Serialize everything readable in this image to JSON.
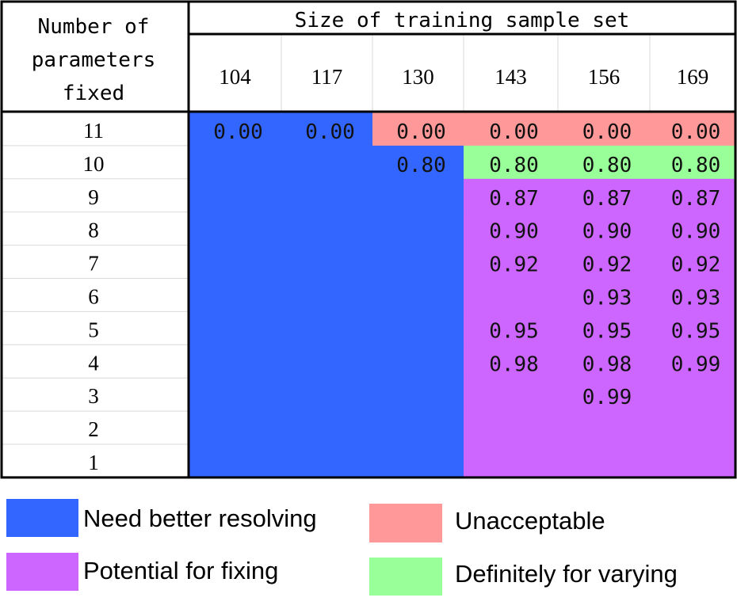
{
  "chart_data": {
    "type": "table",
    "row_header": "Number of parameters fixed",
    "column_header": "Size of training sample set",
    "columns": [
      "104",
      "117",
      "130",
      "143",
      "156",
      "169"
    ],
    "rows": [
      "11",
      "10",
      "9",
      "8",
      "7",
      "6",
      "5",
      "4",
      "3",
      "2",
      "1"
    ],
    "cells": [
      [
        "0.00",
        "0.00",
        "0.00",
        "0.00",
        "0.00",
        "0.00"
      ],
      [
        "",
        "",
        "0.80",
        "0.80",
        "0.80",
        "0.80"
      ],
      [
        "",
        "",
        "",
        "0.87",
        "0.87",
        "0.87"
      ],
      [
        "",
        "",
        "",
        "0.90",
        "0.90",
        "0.90"
      ],
      [
        "",
        "",
        "",
        "0.92",
        "0.92",
        "0.92"
      ],
      [
        "",
        "",
        "",
        "",
        "0.93",
        "0.93"
      ],
      [
        "",
        "",
        "",
        "0.95",
        "0.95",
        "0.95"
      ],
      [
        "",
        "",
        "",
        "0.98",
        "0.98",
        "0.99"
      ],
      [
        "",
        "",
        "",
        "",
        "0.99",
        ""
      ],
      [
        "",
        "",
        "",
        "",
        "",
        ""
      ],
      [
        "",
        "",
        "",
        "",
        "",
        ""
      ]
    ],
    "categories_grid": [
      [
        "B",
        "B",
        "R",
        "R",
        "R",
        "R"
      ],
      [
        "B",
        "B",
        "B",
        "G",
        "G",
        "G"
      ],
      [
        "B",
        "B",
        "B",
        "P",
        "P",
        "P"
      ],
      [
        "B",
        "B",
        "B",
        "P",
        "P",
        "P"
      ],
      [
        "B",
        "B",
        "B",
        "P",
        "P",
        "P"
      ],
      [
        "B",
        "B",
        "B",
        "P",
        "P",
        "P"
      ],
      [
        "B",
        "B",
        "B",
        "P",
        "P",
        "P"
      ],
      [
        "B",
        "B",
        "B",
        "P",
        "P",
        "P"
      ],
      [
        "B",
        "B",
        "B",
        "P",
        "P",
        "P"
      ],
      [
        "B",
        "B",
        "B",
        "P",
        "P",
        "P"
      ],
      [
        "B",
        "B",
        "B",
        "P",
        "P",
        "P"
      ]
    ],
    "legend": [
      {
        "key": "B",
        "label": "Need better resolving",
        "color": "#3366ff"
      },
      {
        "key": "R",
        "label": "Unacceptable",
        "color": "#ff9999"
      },
      {
        "key": "P",
        "label": "Potential for fixing",
        "color": "#cc66ff"
      },
      {
        "key": "G",
        "label": "Definitely for varying",
        "color": "#99ff99"
      }
    ],
    "legend_placement": "bottom"
  }
}
